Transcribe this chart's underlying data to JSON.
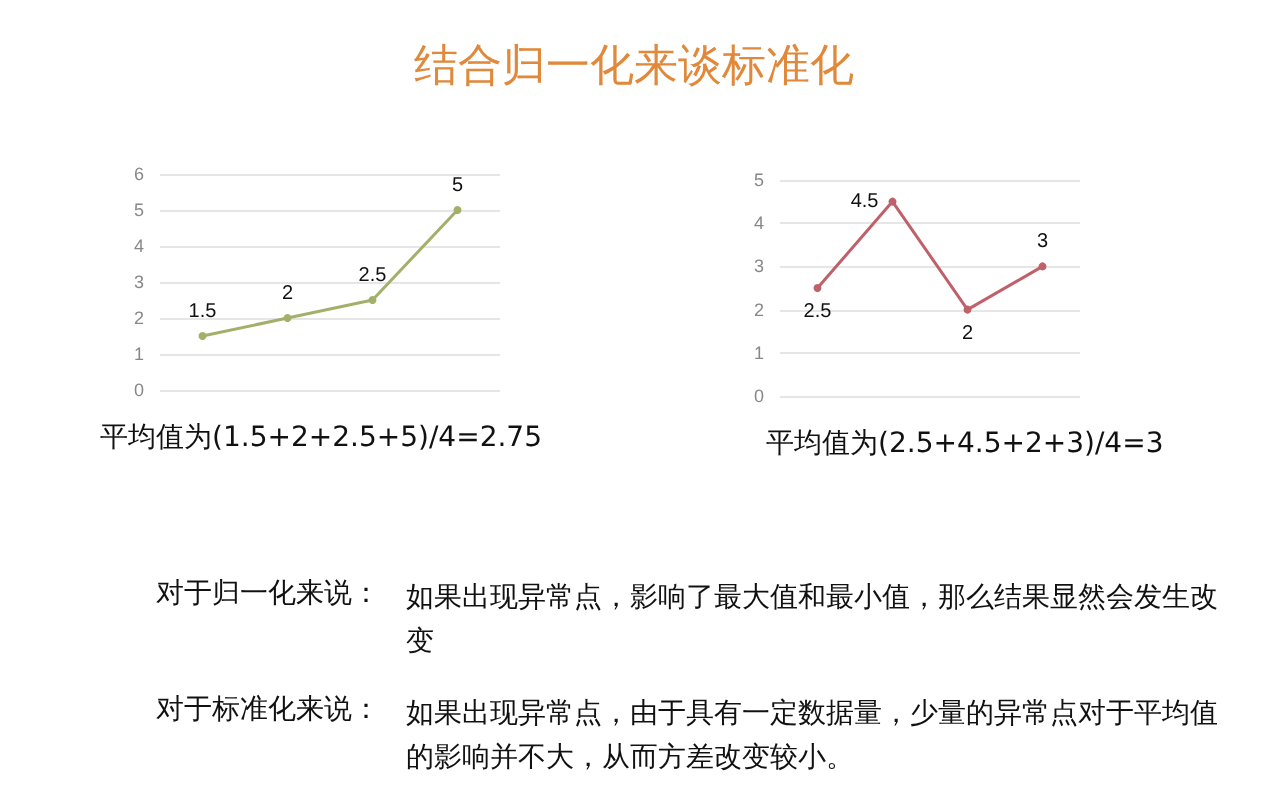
{
  "chart_data": [
    {
      "type": "line",
      "categories": [
        null,
        null,
        null,
        null
      ],
      "values": [
        1.5,
        2,
        2.5,
        5
      ],
      "color": "#a3b06a",
      "ylim": [
        0,
        6
      ],
      "yticks": [
        0,
        1,
        2,
        3,
        4,
        5,
        6
      ],
      "grid": "y",
      "marker": "circle",
      "data_labels": true,
      "tick_labels": "y",
      "annotations": [
        "平均值为(1.5+2+2.5+5)/4=2.75"
      ]
    },
    {
      "type": "line",
      "categories": [
        null,
        null,
        null,
        null
      ],
      "values": [
        2.5,
        4.5,
        2,
        3
      ],
      "color": "#c0606a",
      "ylim": [
        0,
        5
      ],
      "yticks": [
        0,
        1,
        2,
        3,
        4,
        5
      ],
      "grid": "y",
      "marker": "circle",
      "data_labels": true,
      "tick_labels": "y",
      "annotations": [
        "平均值为(2.5+4.5+2+3)/4=3"
      ]
    },
    {
      "type": "other",
      "title": "结合归一化来谈标准化",
      "annotations": [
        "对于归一化来说：",
        "如果出现异常点，影响了最大值和最小值，那么结果显然会发生改变",
        "对于标准化来说：",
        "如果出现异常点，由于具有一定数据量，少量的异常点对于平均值的影响并不大，从而方差改变较小。"
      ]
    }
  ]
}
